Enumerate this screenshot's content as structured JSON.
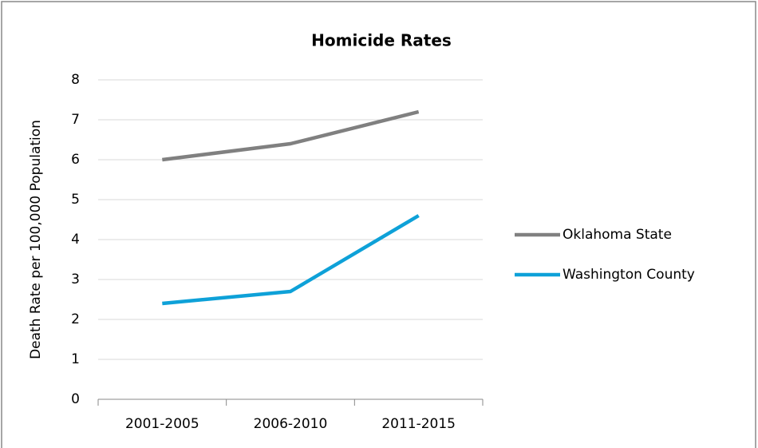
{
  "chart_data": {
    "type": "line",
    "title": "Homicide Rates",
    "y_label": "Death Rate per 100,000 Population",
    "categories": [
      "2001-2005",
      "2006-2010",
      "2011-2015"
    ],
    "series": [
      {
        "name": "Oklahoma State",
        "color": "#808080",
        "values": [
          6.0,
          6.4,
          7.2
        ]
      },
      {
        "name": "Washington County",
        "color": "#0ea1d8",
        "values": [
          2.4,
          2.7,
          4.6
        ]
      }
    ],
    "ylim": [
      0,
      8
    ],
    "yticks": [
      0,
      1,
      2,
      3,
      4,
      5,
      6,
      7,
      8
    ],
    "grid": true,
    "legend": "right"
  }
}
